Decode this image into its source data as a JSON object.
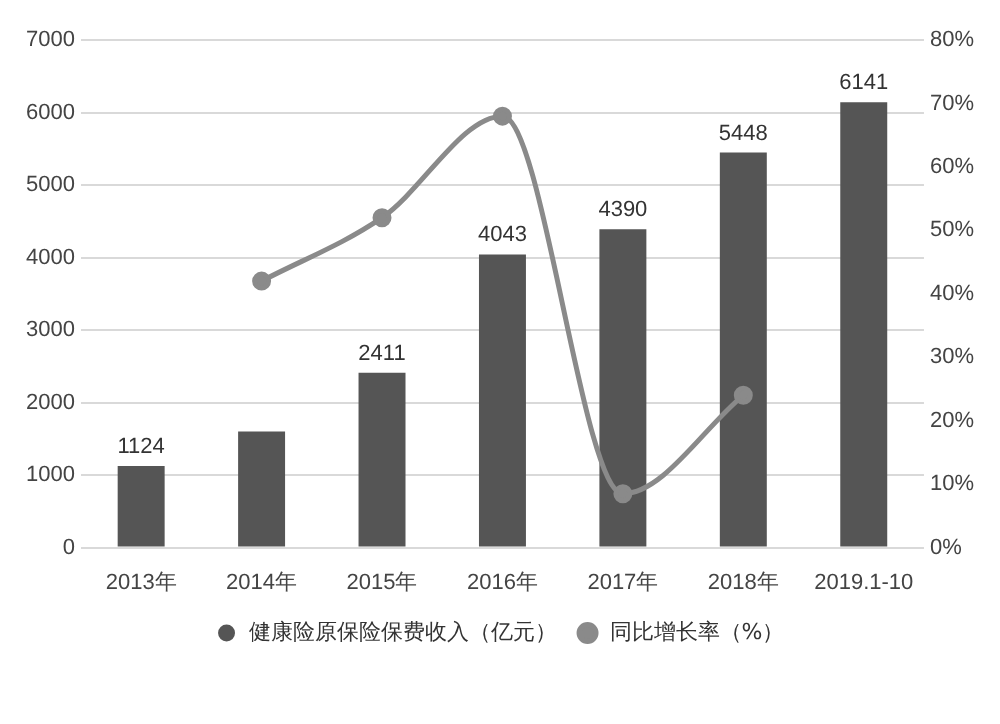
{
  "chart_data": {
    "type": "bar",
    "categories": [
      "2013年",
      "2014年",
      "2015年",
      "2016年",
      "2017年",
      "2018年",
      "2019.1-10"
    ],
    "series": [
      {
        "name": "健康险原保险保费收入（亿元）",
        "color": "#555555",
        "values": [
          1124,
          1600,
          2411,
          4043,
          4390,
          5448,
          6141
        ],
        "value_labels": [
          "1124",
          null,
          "2411",
          "4043",
          "4390",
          "5448",
          "6141"
        ]
      },
      {
        "name": "同比增长率（%）",
        "type": "line",
        "axis": "y2",
        "color": "#8a8a8a",
        "values": [
          null,
          42,
          52,
          68,
          8.5,
          24,
          null
        ]
      }
    ],
    "ylim": [
      0,
      7000
    ],
    "yticks": [
      0,
      1000,
      2000,
      3000,
      4000,
      5000,
      6000,
      7000
    ],
    "y2lim": [
      0,
      80
    ],
    "y2ticks": [
      {
        "value": 0,
        "label": "0%"
      },
      {
        "value": 10,
        "label": "10%"
      },
      {
        "value": 20,
        "label": "20%"
      },
      {
        "value": 30,
        "label": "30%"
      },
      {
        "value": 40,
        "label": "40%"
      },
      {
        "value": 50,
        "label": "50%"
      },
      {
        "value": 60,
        "label": "60%"
      },
      {
        "value": 70,
        "label": "70%"
      },
      {
        "value": 80,
        "label": "80%"
      }
    ],
    "grid": "y",
    "legend": "bottom",
    "marker": "circle"
  }
}
